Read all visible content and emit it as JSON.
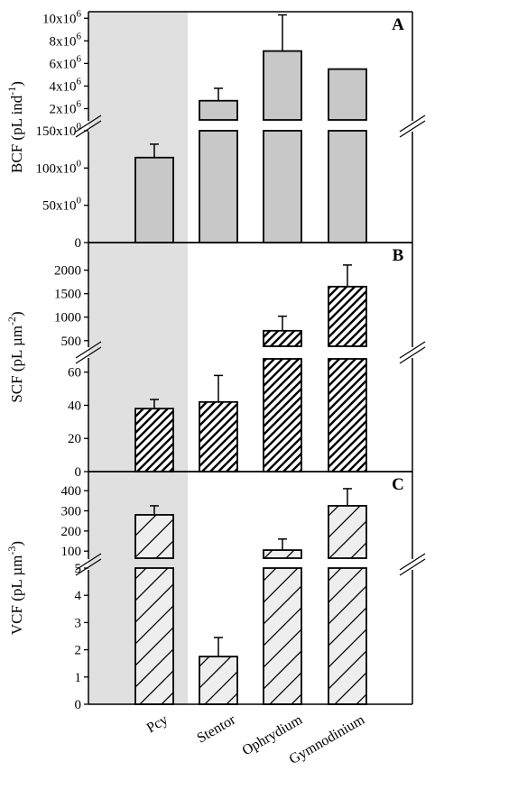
{
  "chart_data": {
    "type": "bar",
    "categories": [
      "Pcy",
      "Stentor",
      "Ophrydium",
      "Gymnodinium"
    ],
    "shaded_category": "Pcy",
    "colors": {
      "shade": "#e0e0e0",
      "bar_fill": "#c8c8c8",
      "stroke": "#000000"
    },
    "panels": [
      {
        "letter": "A",
        "ylabel": {
          "main": "BCF (pL ind",
          "sup": "-1",
          "end": ")"
        },
        "pattern": "solid",
        "broken_axis": true,
        "lower": {
          "ylim": [
            0,
            150
          ],
          "ticks": [
            {
              "value": 0,
              "base": "0",
              "exp": ""
            },
            {
              "value": 50,
              "base": "50x10",
              "exp": "0"
            },
            {
              "value": 100,
              "base": "100x10",
              "exp": "0"
            },
            {
              "value": 150,
              "base": "150x10",
              "exp": "0"
            }
          ]
        },
        "upper": {
          "ylim": [
            1000000,
            10500000
          ],
          "ticks": [
            {
              "value": 2000000,
              "base": "2x10",
              "exp": "6"
            },
            {
              "value": 4000000,
              "base": "4x10",
              "exp": "6"
            },
            {
              "value": 6000000,
              "base": "6x10",
              "exp": "6"
            },
            {
              "value": 8000000,
              "base": "8x10",
              "exp": "6"
            },
            {
              "value": 10000000,
              "base": "10x10",
              "exp": "6"
            }
          ]
        },
        "values": [
          114,
          2700000,
          7100000,
          5500000
        ],
        "errors": [
          18,
          1100000,
          3200000,
          0
        ]
      },
      {
        "letter": "B",
        "ylabel": {
          "main": "SCF (pL µm",
          "sup": "-2",
          "end": ")"
        },
        "pattern": "dense-hatch",
        "broken_axis": true,
        "lower": {
          "ylim": [
            0,
            68
          ],
          "ticks": [
            {
              "value": 0,
              "base": "0",
              "exp": ""
            },
            {
              "value": 20,
              "base": "20",
              "exp": ""
            },
            {
              "value": 40,
              "base": "40",
              "exp": ""
            },
            {
              "value": 60,
              "base": "60",
              "exp": ""
            }
          ]
        },
        "upper": {
          "ylim": [
            380,
            2300
          ],
          "ticks": [
            {
              "value": 500,
              "base": "500",
              "exp": ""
            },
            {
              "value": 1000,
              "base": "1000",
              "exp": ""
            },
            {
              "value": 1500,
              "base": "1500",
              "exp": ""
            },
            {
              "value": 2000,
              "base": "2000",
              "exp": ""
            }
          ]
        },
        "values": [
          38,
          42,
          710,
          1650
        ],
        "errors": [
          5.5,
          16,
          310,
          460
        ]
      },
      {
        "letter": "C",
        "ylabel": {
          "main": "VCF (pL µm",
          "sup": "-3",
          "end": ")"
        },
        "pattern": "sparse-hatch",
        "broken_axis": true,
        "lower": {
          "ylim": [
            0,
            5
          ],
          "ticks": [
            {
              "value": 0,
              "base": "0",
              "exp": ""
            },
            {
              "value": 1,
              "base": "1",
              "exp": ""
            },
            {
              "value": 2,
              "base": "2",
              "exp": ""
            },
            {
              "value": 3,
              "base": "3",
              "exp": ""
            },
            {
              "value": 4,
              "base": "4",
              "exp": ""
            },
            {
              "value": 5,
              "base": "5",
              "exp": ""
            }
          ]
        },
        "upper": {
          "ylim": [
            65,
            450
          ],
          "ticks": [
            {
              "value": 100,
              "base": "100",
              "exp": ""
            },
            {
              "value": 200,
              "base": "200",
              "exp": ""
            },
            {
              "value": 300,
              "base": "300",
              "exp": ""
            },
            {
              "value": 400,
              "base": "400",
              "exp": ""
            }
          ]
        },
        "values": [
          280,
          1.75,
          105,
          325
        ],
        "errors": [
          45,
          0.7,
          55,
          85
        ]
      }
    ]
  }
}
